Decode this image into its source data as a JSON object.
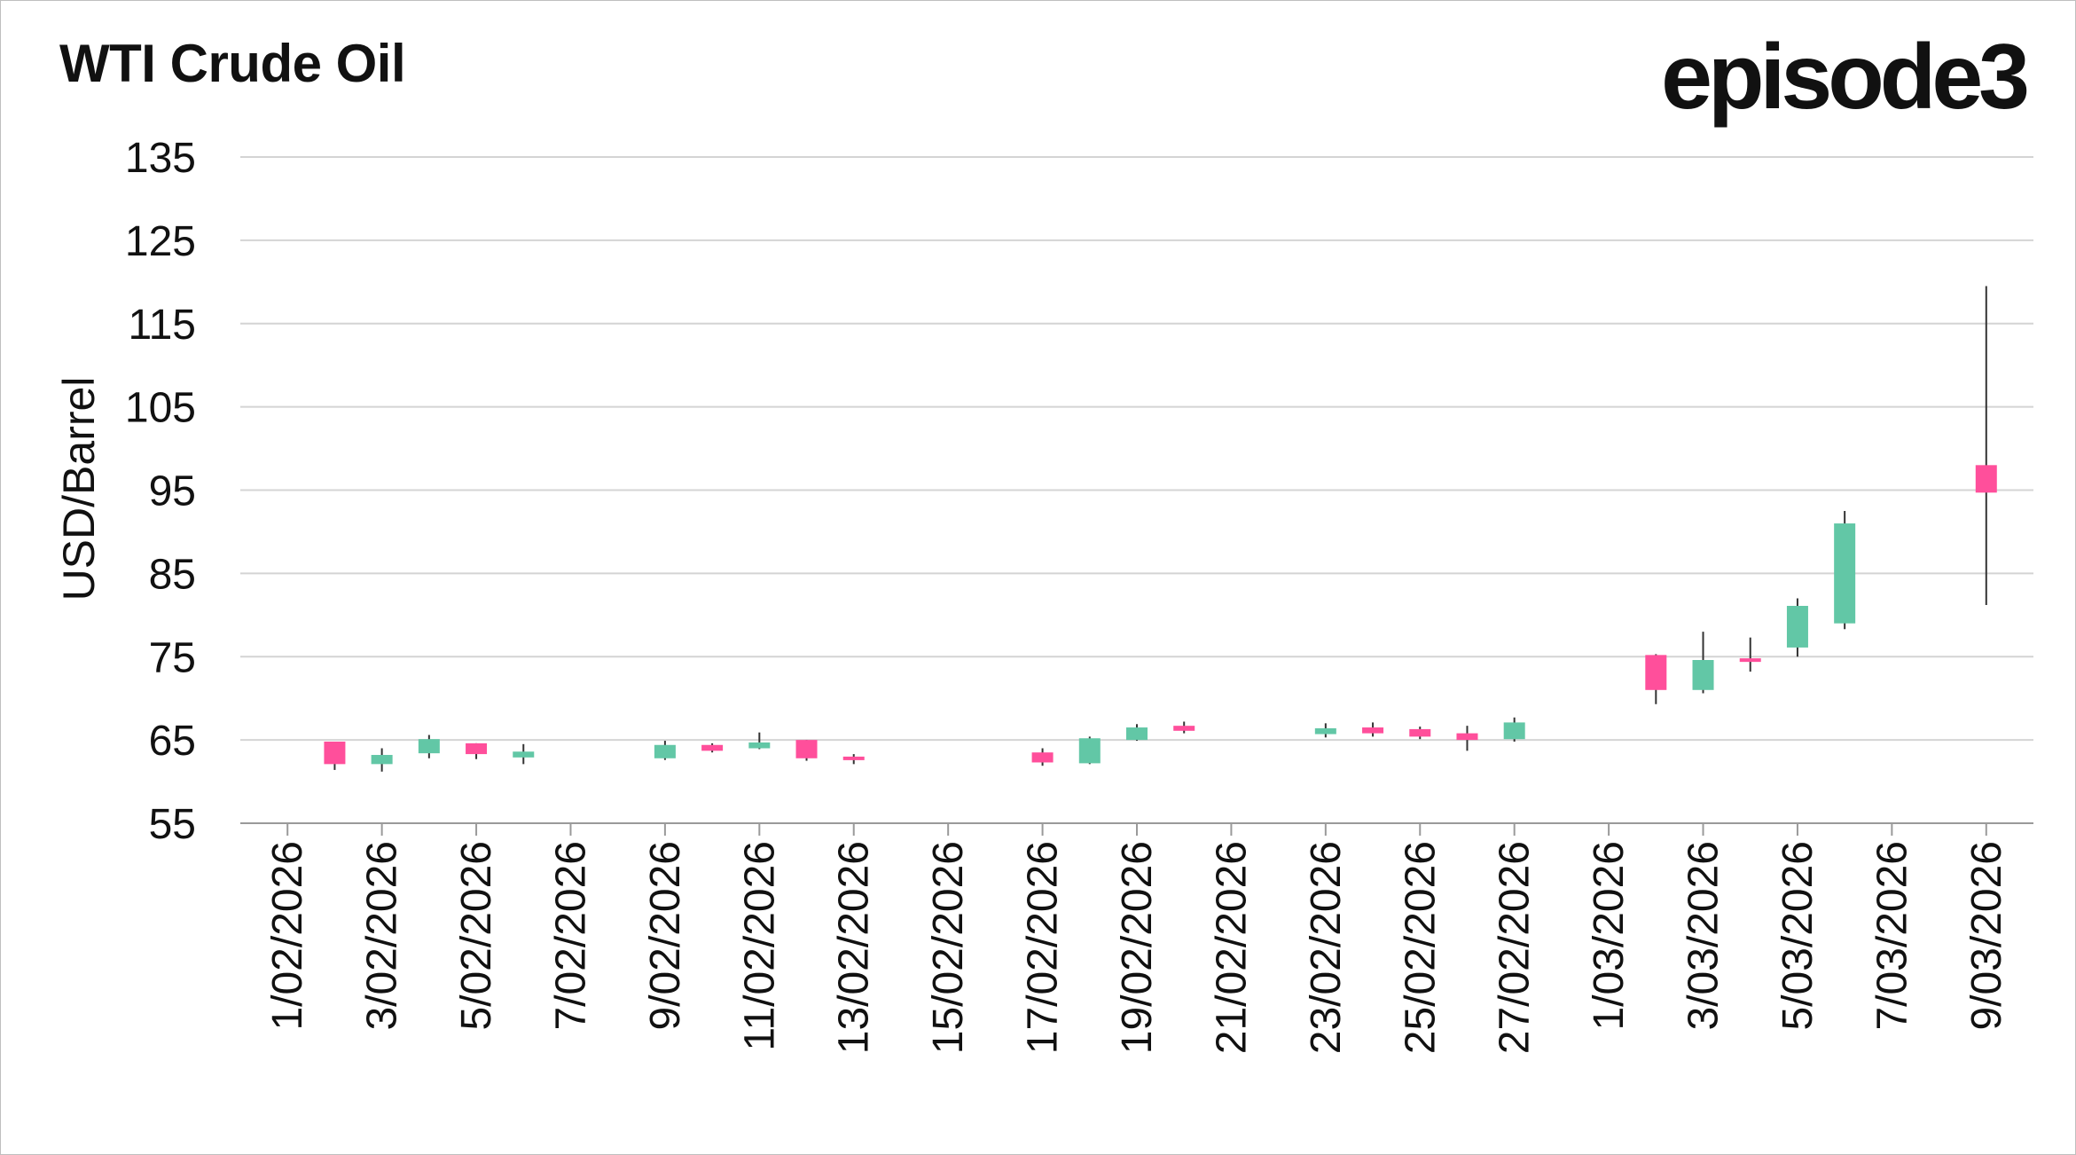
{
  "header": {
    "title": "WTI Crude Oil",
    "brand": "episode3"
  },
  "chart_data": {
    "type": "candlestick",
    "title": "WTI Crude Oil",
    "ylabel": "USD/Barrel",
    "xlabel": "",
    "ylim": [
      55,
      135
    ],
    "yticks": [
      55,
      65,
      75,
      85,
      95,
      105,
      115,
      125,
      135
    ],
    "grid": true,
    "x_range": [
      "2026-01-31",
      "2026-03-10"
    ],
    "xtick_labels": [
      "1/02/2026",
      "3/02/2026",
      "5/02/2026",
      "7/02/2026",
      "9/02/2026",
      "11/02/2026",
      "13/02/2026",
      "15/02/2026",
      "17/02/2026",
      "19/02/2026",
      "21/02/2026",
      "23/02/2026",
      "25/02/2026",
      "27/02/2026",
      "1/03/2026",
      "3/03/2026",
      "5/03/2026",
      "7/03/2026",
      "9/03/2026"
    ],
    "xtick_dates": [
      "2026-02-01",
      "2026-02-03",
      "2026-02-05",
      "2026-02-07",
      "2026-02-09",
      "2026-02-11",
      "2026-02-13",
      "2026-02-15",
      "2026-02-17",
      "2026-02-19",
      "2026-02-21",
      "2026-02-23",
      "2026-02-25",
      "2026-02-27",
      "2026-03-01",
      "2026-03-03",
      "2026-03-05",
      "2026-03-07",
      "2026-03-09"
    ],
    "colors": {
      "up": "#62c7a6",
      "down": "#ff4f9b",
      "wick": "#333333",
      "grid": "#d4d4d4",
      "axis": "#9a9a9a"
    },
    "candles": [
      {
        "date": "2026-02-02",
        "open": 64.8,
        "high": 64.8,
        "low": 61.4,
        "close": 62.1
      },
      {
        "date": "2026-02-03",
        "open": 62.1,
        "high": 64.0,
        "low": 61.2,
        "close": 63.2
      },
      {
        "date": "2026-02-04",
        "open": 63.4,
        "high": 65.6,
        "low": 62.8,
        "close": 65.1
      },
      {
        "date": "2026-02-05",
        "open": 64.6,
        "high": 64.6,
        "low": 62.7,
        "close": 63.3
      },
      {
        "date": "2026-02-06",
        "open": 62.9,
        "high": 64.5,
        "low": 62.1,
        "close": 63.6
      },
      {
        "date": "2026-02-09",
        "open": 62.8,
        "high": 64.9,
        "low": 62.6,
        "close": 64.4
      },
      {
        "date": "2026-02-10",
        "open": 64.4,
        "high": 64.6,
        "low": 63.5,
        "close": 63.7
      },
      {
        "date": "2026-02-11",
        "open": 64.0,
        "high": 65.9,
        "low": 63.9,
        "close": 64.7
      },
      {
        "date": "2026-02-12",
        "open": 65.0,
        "high": 65.0,
        "low": 62.5,
        "close": 62.8
      },
      {
        "date": "2026-02-13",
        "open": 63.0,
        "high": 63.3,
        "low": 62.1,
        "close": 62.6
      },
      {
        "date": "2026-02-17",
        "open": 63.5,
        "high": 64.0,
        "low": 61.9,
        "close": 62.3
      },
      {
        "date": "2026-02-18",
        "open": 62.2,
        "high": 65.4,
        "low": 62.1,
        "close": 65.2
      },
      {
        "date": "2026-02-19",
        "open": 65.0,
        "high": 66.9,
        "low": 64.9,
        "close": 66.5
      },
      {
        "date": "2026-02-20",
        "open": 66.7,
        "high": 67.2,
        "low": 65.8,
        "close": 66.1
      },
      {
        "date": "2026-02-23",
        "open": 65.7,
        "high": 67.0,
        "low": 65.3,
        "close": 66.4
      },
      {
        "date": "2026-02-24",
        "open": 66.5,
        "high": 67.1,
        "low": 65.4,
        "close": 65.8
      },
      {
        "date": "2026-02-25",
        "open": 66.3,
        "high": 66.6,
        "low": 65.1,
        "close": 65.4
      },
      {
        "date": "2026-02-26",
        "open": 65.8,
        "high": 66.7,
        "low": 63.7,
        "close": 65.0
      },
      {
        "date": "2026-02-27",
        "open": 65.1,
        "high": 67.7,
        "low": 64.8,
        "close": 67.1
      },
      {
        "date": "2026-03-02",
        "open": 75.2,
        "high": 75.3,
        "low": 69.3,
        "close": 71.0
      },
      {
        "date": "2026-03-03",
        "open": 71.0,
        "high": 78.0,
        "low": 70.6,
        "close": 74.6
      },
      {
        "date": "2026-03-04",
        "open": 74.8,
        "high": 77.3,
        "low": 73.2,
        "close": 74.5
      },
      {
        "date": "2026-03-05",
        "open": 76.1,
        "high": 82.0,
        "low": 75.0,
        "close": 81.1
      },
      {
        "date": "2026-03-06",
        "open": 79.0,
        "high": 92.5,
        "low": 78.3,
        "close": 91.0
      },
      {
        "date": "2026-03-09",
        "open": 98.0,
        "high": 119.5,
        "low": 81.2,
        "close": 94.7
      }
    ]
  }
}
